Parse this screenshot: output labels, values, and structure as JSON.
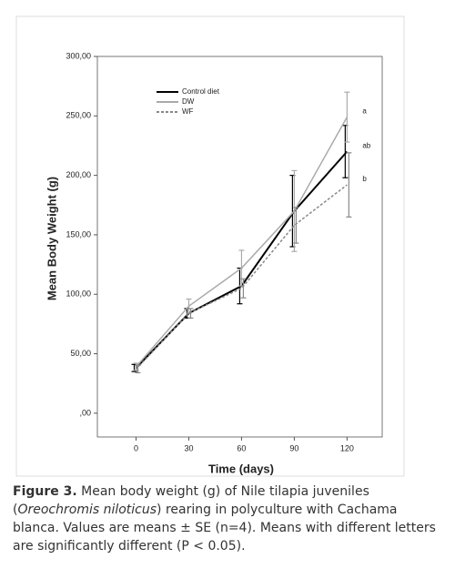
{
  "chart_data": {
    "type": "line",
    "x_label": "Time (days)",
    "y_label": "Mean Body Weight (g)",
    "x": [
      0,
      30,
      60,
      90,
      120
    ],
    "xlim": [
      -22,
      140
    ],
    "xticks": [
      0,
      30,
      60,
      90,
      120
    ],
    "ylim": [
      -20,
      300
    ],
    "yticks": [
      {
        "value": 0,
        "label": ",00"
      },
      {
        "value": 50,
        "label": "50,00"
      },
      {
        "value": 100,
        "label": "100,00"
      },
      {
        "value": 150,
        "label": "150,00"
      },
      {
        "value": 200,
        "label": "200,00"
      },
      {
        "value": 250,
        "label": "250,00"
      },
      {
        "value": 300,
        "label": "300,00"
      }
    ],
    "series": [
      {
        "name": "Control diet",
        "color": "#000000",
        "style": "solid",
        "values": [
          38,
          84,
          107,
          170,
          220
        ],
        "errors": [
          3,
          4,
          15,
          30,
          22
        ]
      },
      {
        "name": "DW",
        "color": "#aaaaaa",
        "style": "solid",
        "values": [
          39,
          90,
          122,
          170,
          249
        ],
        "errors": [
          3,
          6,
          15,
          34,
          21
        ]
      },
      {
        "name": "WF",
        "color": "#888888",
        "style": "dashed",
        "values": [
          37,
          84,
          105,
          158,
          192
        ],
        "errors": [
          3,
          4,
          8,
          15,
          27
        ]
      }
    ],
    "annotations": [
      {
        "text": "a",
        "series": 1
      },
      {
        "text": "ab",
        "series": 0
      },
      {
        "text": "b",
        "series": 2
      }
    ],
    "caption": {
      "label": "Figure 3.",
      "before": "Mean body weight (g) of Nile tilapia juveniles (",
      "species": "Oreochromis niloticus",
      "after": ") rearing in polyculture with Cachama blanca. Values are means ± SE (n=4). Means with different letters are significantly different (P < 0.05)."
    }
  }
}
